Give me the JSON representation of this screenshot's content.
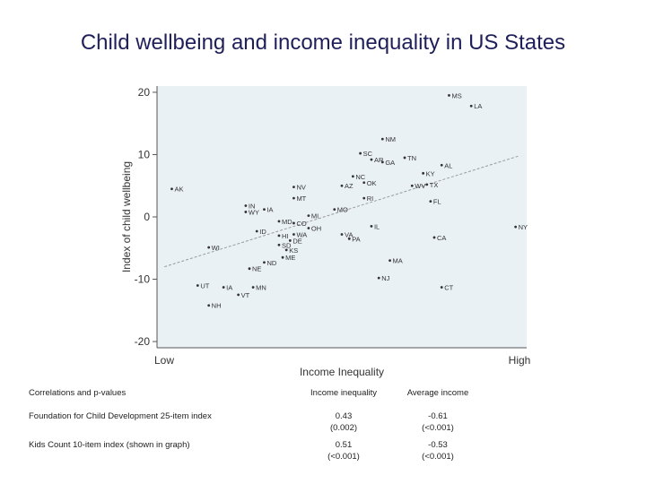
{
  "title": "Child wellbeing and income inequality in US States",
  "chart_data": {
    "type": "scatter",
    "xlabel": "Income Inequality",
    "ylabel": "Index of child wellbeing",
    "x_tick_labels": [
      "Low",
      "High"
    ],
    "y_ticks": [
      20,
      10,
      0,
      -10,
      -20
    ],
    "ylim": [
      -21,
      21
    ],
    "xlim": [
      0,
      100
    ],
    "grid": false,
    "trend_line": {
      "x": [
        2,
        98
      ],
      "y": [
        -8,
        9.8
      ]
    },
    "points": [
      {
        "label": "MS",
        "x": 79,
        "y": 19.5
      },
      {
        "label": "LA",
        "x": 85,
        "y": 17.8
      },
      {
        "label": "NM",
        "x": 61,
        "y": 12.5
      },
      {
        "label": "SC",
        "x": 55,
        "y": 10.2
      },
      {
        "label": "AR",
        "x": 58,
        "y": 9.2
      },
      {
        "label": "GA",
        "x": 61,
        "y": 8.8
      },
      {
        "label": "TN",
        "x": 67,
        "y": 9.5
      },
      {
        "label": "AL",
        "x": 77,
        "y": 8.3
      },
      {
        "label": "KY",
        "x": 72,
        "y": 7.0
      },
      {
        "label": "NC",
        "x": 53,
        "y": 6.5
      },
      {
        "label": "OK",
        "x": 56,
        "y": 5.5
      },
      {
        "label": "AZ",
        "x": 50,
        "y": 5.0
      },
      {
        "label": "WV",
        "x": 69,
        "y": 5.0
      },
      {
        "label": "TX",
        "x": 73,
        "y": 5.2
      },
      {
        "label": "NV",
        "x": 37,
        "y": 4.8
      },
      {
        "label": "MT",
        "x": 37,
        "y": 3.0
      },
      {
        "label": "RI",
        "x": 56,
        "y": 3.0
      },
      {
        "label": "FL",
        "x": 74,
        "y": 2.5
      },
      {
        "label": "AK",
        "x": 4,
        "y": 4.5
      },
      {
        "label": "IN",
        "x": 24,
        "y": 1.8
      },
      {
        "label": "WY",
        "x": 24,
        "y": 0.8
      },
      {
        "label": "IA",
        "x": 29,
        "y": 1.2
      },
      {
        "label": "MO",
        "x": 48,
        "y": 1.2
      },
      {
        "label": "MI",
        "x": 41,
        "y": 0.2
      },
      {
        "label": "MD",
        "x": 33,
        "y": -0.7
      },
      {
        "label": "CO",
        "x": 37,
        "y": -1.0
      },
      {
        "label": "OH",
        "x": 41,
        "y": -1.8
      },
      {
        "label": "IL",
        "x": 58,
        "y": -1.5
      },
      {
        "label": "ID",
        "x": 27,
        "y": -2.3
      },
      {
        "label": "HI",
        "x": 33,
        "y": -3.0
      },
      {
        "label": "WA",
        "x": 37,
        "y": -2.8
      },
      {
        "label": "VA",
        "x": 50,
        "y": -2.8
      },
      {
        "label": "PA",
        "x": 52,
        "y": -3.5
      },
      {
        "label": "DE",
        "x": 36,
        "y": -3.8
      },
      {
        "label": "CA",
        "x": 75,
        "y": -3.3
      },
      {
        "label": "NY",
        "x": 97,
        "y": -1.6
      },
      {
        "label": "SD",
        "x": 33,
        "y": -4.5
      },
      {
        "label": "WI",
        "x": 14,
        "y": -4.9
      },
      {
        "label": "KS",
        "x": 35,
        "y": -5.3
      },
      {
        "label": "ME",
        "x": 34,
        "y": -6.5
      },
      {
        "label": "ND",
        "x": 29,
        "y": -7.3
      },
      {
        "label": "MA",
        "x": 63,
        "y": -7.0
      },
      {
        "label": "NE",
        "x": 25,
        "y": -8.3
      },
      {
        "label": "NJ",
        "x": 60,
        "y": -9.8
      },
      {
        "label": "UT",
        "x": 11,
        "y": -11.0
      },
      {
        "label": "IA",
        "x": 18,
        "y": -11.3
      },
      {
        "label": "MN",
        "x": 26,
        "y": -11.3
      },
      {
        "label": "CT",
        "x": 77,
        "y": -11.3
      },
      {
        "label": "VT",
        "x": 22,
        "y": -12.5
      },
      {
        "label": "NH",
        "x": 14,
        "y": -14.2
      }
    ]
  },
  "table": {
    "headers": [
      "Correlations and p-values",
      "Income inequality",
      "Average income"
    ],
    "rows": [
      {
        "label": "Foundation for Child Development 25-item index",
        "ineq": "0.43",
        "ineq_p": "(0.002)",
        "avg": "-0.61",
        "avg_p": "(<0.001)"
      },
      {
        "label": "Kids Count 10-item index (shown in graph)",
        "ineq": "0.51",
        "ineq_p": "(<0.001)",
        "avg": "-0.53",
        "avg_p": "(<0.001)"
      }
    ]
  }
}
